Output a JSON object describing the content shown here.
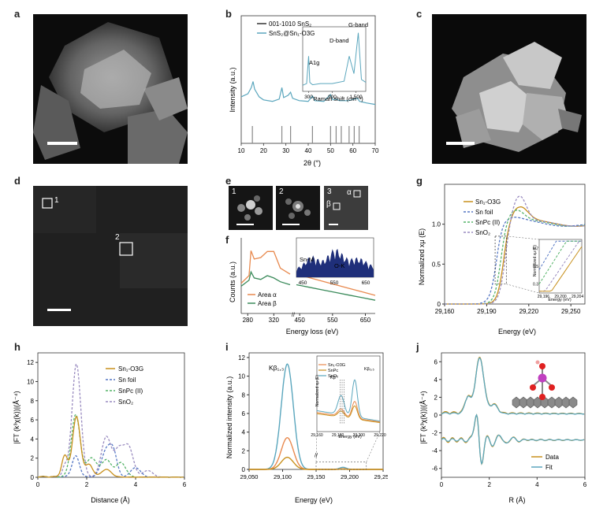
{
  "labels": {
    "a": "a",
    "b": "b",
    "c": "c",
    "d": "d",
    "e": "e",
    "f": "f",
    "g": "g",
    "h": "h",
    "i": "i",
    "j": "j"
  },
  "panel_d": {
    "marker1": "1",
    "marker2": "2"
  },
  "panel_e": {
    "tile1": "1",
    "tile2": "2",
    "tile3": "3",
    "alpha": "α",
    "beta": "β"
  },
  "colors": {
    "teal": "#5aa6bd",
    "orange": "#e8894e",
    "gold": "#c8901c",
    "blue": "#5577c4",
    "green": "#55b368",
    "purple": "#9a8cc0",
    "green_dark": "#3a8a5a",
    "navy": "#1f2f7a",
    "gray": "#999999",
    "black": "#333333"
  },
  "chart_data": [
    {
      "id": "b",
      "type": "line",
      "xlabel": "2θ (°)",
      "ylabel": "Intensity (a.u.)",
      "xlim": [
        10,
        70
      ],
      "xticks": [
        10,
        20,
        30,
        40,
        50,
        60,
        70
      ],
      "legend": [
        "001-1010 SnS2",
        "SnS2@Sn1-O3G"
      ],
      "sticks": [
        15,
        28.2,
        32.1,
        41.9,
        50,
        52.5,
        54.8,
        58.3,
        60.6,
        62.8
      ],
      "series": [
        {
          "name": "SnS2@Sn1-O3G",
          "x": [
            10,
            13,
            14.5,
            15.3,
            16,
            18,
            20,
            24,
            27,
            28.2,
            29,
            31,
            32.1,
            33,
            36,
            40,
            41.9,
            43,
            47,
            50,
            51,
            52.5,
            54,
            58,
            62,
            63,
            66,
            70
          ],
          "y": [
            0.32,
            0.36,
            0.44,
            0.52,
            0.42,
            0.32,
            0.28,
            0.26,
            0.29,
            0.44,
            0.31,
            0.34,
            0.38,
            0.3,
            0.27,
            0.26,
            0.33,
            0.27,
            0.26,
            0.35,
            0.28,
            0.29,
            0.27,
            0.27,
            0.3,
            0.26,
            0.24,
            0.22
          ]
        }
      ],
      "inset": {
        "xlabel": "Raman shift (cm⁻¹)",
        "xticks": [
          300,
          900,
          1500
        ],
        "annotations": [
          "A1g",
          "D-band",
          "G-band"
        ],
        "x": [
          150,
          250,
          300,
          330,
          400,
          600,
          900,
          1200,
          1330,
          1450,
          1560,
          1600,
          1640,
          1750
        ],
        "y": [
          0.05,
          0.08,
          0.55,
          0.1,
          0.06,
          0.08,
          0.08,
          0.12,
          0.55,
          0.25,
          0.95,
          0.55,
          0.15,
          0.1
        ]
      }
    },
    {
      "id": "f",
      "type": "line",
      "xlabel": "Energy loss (eV)",
      "ylabel": "Counts (a.u.)",
      "xticks": [
        280,
        320,
        360,
        450,
        550,
        650
      ],
      "legend": [
        "Area α",
        "Area β"
      ],
      "series": [
        {
          "name": "Area α",
          "x": [
            270,
            282,
            285,
            290,
            300,
            310,
            320,
            330,
            345
          ],
          "y": [
            0.4,
            0.5,
            0.83,
            0.72,
            0.74,
            0.82,
            0.82,
            0.6,
            0.52
          ]
        },
        {
          "name": "Area β",
          "x": [
            270,
            282,
            285,
            290,
            300,
            310,
            320,
            330,
            345
          ],
          "y": [
            0.36,
            0.44,
            0.55,
            0.47,
            0.45,
            0.5,
            0.47,
            0.42,
            0.38
          ]
        }
      ],
      "inset": {
        "labels": [
          "Sn-M",
          "O-K"
        ],
        "xticks": [
          450,
          550,
          650
        ]
      }
    },
    {
      "id": "g",
      "type": "line",
      "xlabel": "Energy (eV)",
      "ylabel": "Normalized xμ (E)",
      "xlim": [
        29160,
        29260
      ],
      "ylim": [
        0,
        1.5
      ],
      "xticks": [
        29160,
        29190,
        29220,
        29250
      ],
      "yticks": [
        0,
        0.5,
        1.0
      ],
      "legend": [
        "Sn1-O3G",
        "Sn foil",
        "SnPc (II)",
        "SnO2"
      ],
      "inset": {
        "xlabel": "Energy (eV)",
        "ylabel": "Normalized xμ (E)",
        "xticks": [
          29196,
          29200,
          29204
        ],
        "yticks": [
          0.3,
          0.5,
          0.7
        ]
      }
    },
    {
      "id": "h",
      "type": "line",
      "xlabel": "Distance (Å)",
      "ylabel": "|FT (k³χ(k))|(Å⁻⁴)",
      "xlim": [
        0,
        6
      ],
      "ylim": [
        0,
        13
      ],
      "xticks": [
        0,
        2,
        4,
        6
      ],
      "yticks": [
        0,
        2,
        4,
        6,
        8,
        10,
        12
      ],
      "legend": [
        "Sn1-O3G",
        "Sn foil",
        "SnPc (II)",
        "SnO2"
      ]
    },
    {
      "id": "i",
      "type": "line",
      "xlabel": "Energy (eV)",
      "ylabel": "Normalized intensity (a.u.)",
      "xlim": [
        29050,
        29250
      ],
      "ylim": [
        0,
        12.5
      ],
      "xticks": [
        29050,
        29100,
        29150,
        29200,
        29250
      ],
      "yticks": [
        0,
        2,
        4,
        6,
        8,
        10,
        12
      ],
      "annotation": "Kβ1,3",
      "legend": [
        "Sn1-O3G",
        "SnPc",
        "SnO2"
      ],
      "inset": {
        "xlabel": "Energy (eV)",
        "ylabel": "Normalized xμ (E)",
        "xticks": [
          29160,
          29180,
          29200,
          29220
        ],
        "annotations": [
          "Kβ''",
          "Kβ2,5"
        ]
      }
    },
    {
      "id": "j",
      "type": "line",
      "xlabel": "R (Å)",
      "ylabel": "|FT (k³χ(k))|(Å⁻⁴)",
      "xlim": [
        0,
        6
      ],
      "ylim": [
        -7,
        7
      ],
      "xticks": [
        0,
        2,
        4,
        6
      ],
      "yticks": [
        -6,
        -4,
        -2,
        0,
        2,
        4,
        6
      ],
      "legend": [
        "Data",
        "Fit"
      ]
    }
  ],
  "text": {
    "b_legend1": "001-1010 SnS₂",
    "b_legend2": "SnS₂@Sn₁-O3G",
    "b_ylabel": "Intensity (a.u.)",
    "b_xlabel": "2θ (°)",
    "b_inset_xlabel": "Raman shift (cm⁻¹)",
    "b_A1g": "A1g",
    "b_D": "D-band",
    "b_G": "G-band",
    "f_ylabel": "Counts (a.u.)",
    "f_xlabel": "Energy loss (eV)",
    "f_legend1": "Area α",
    "f_legend2": "Area β",
    "f_snm": "Sn-M",
    "f_ok": "O-K",
    "g_ylabel": "Normalized xμ (E)",
    "g_xlabel": "Energy (eV)",
    "g_leg1": "Sn₁-O3G",
    "g_leg2": "Sn foil",
    "g_leg3": "SnPc (II)",
    "g_leg4": "SnO₂",
    "g_inset_y": "Normalized xμ (E)",
    "g_inset_x": "Energy (eV)",
    "h_ylabel": "|FT (k³χ(k))|(Å⁻⁴)",
    "h_xlabel": "Distance (Å)",
    "h_leg1": "Sn₁-O3G",
    "h_leg2": "Sn foil",
    "h_leg3": "SnPc (II)",
    "h_leg4": "SnO₂",
    "i_ylabel": "Normalized intensity (a.u.)",
    "i_xlabel": "Energy (eV)",
    "i_kb": "Kβ₁,₃",
    "i_leg1": "Sn₁-O3G",
    "i_leg2": "SnPc",
    "i_leg3": "SnO₂",
    "i_inset_y": "Normalized xμ (E)",
    "i_inset_x": "Energy (eV)",
    "i_kbpp": "Kβ''",
    "i_kb25": "Kβ₂,₅",
    "j_ylabel": "|FT (k³χ(k))|(Å⁻⁴)",
    "j_xlabel": "R (Å)",
    "j_leg1": "Data",
    "j_leg2": "Fit"
  }
}
